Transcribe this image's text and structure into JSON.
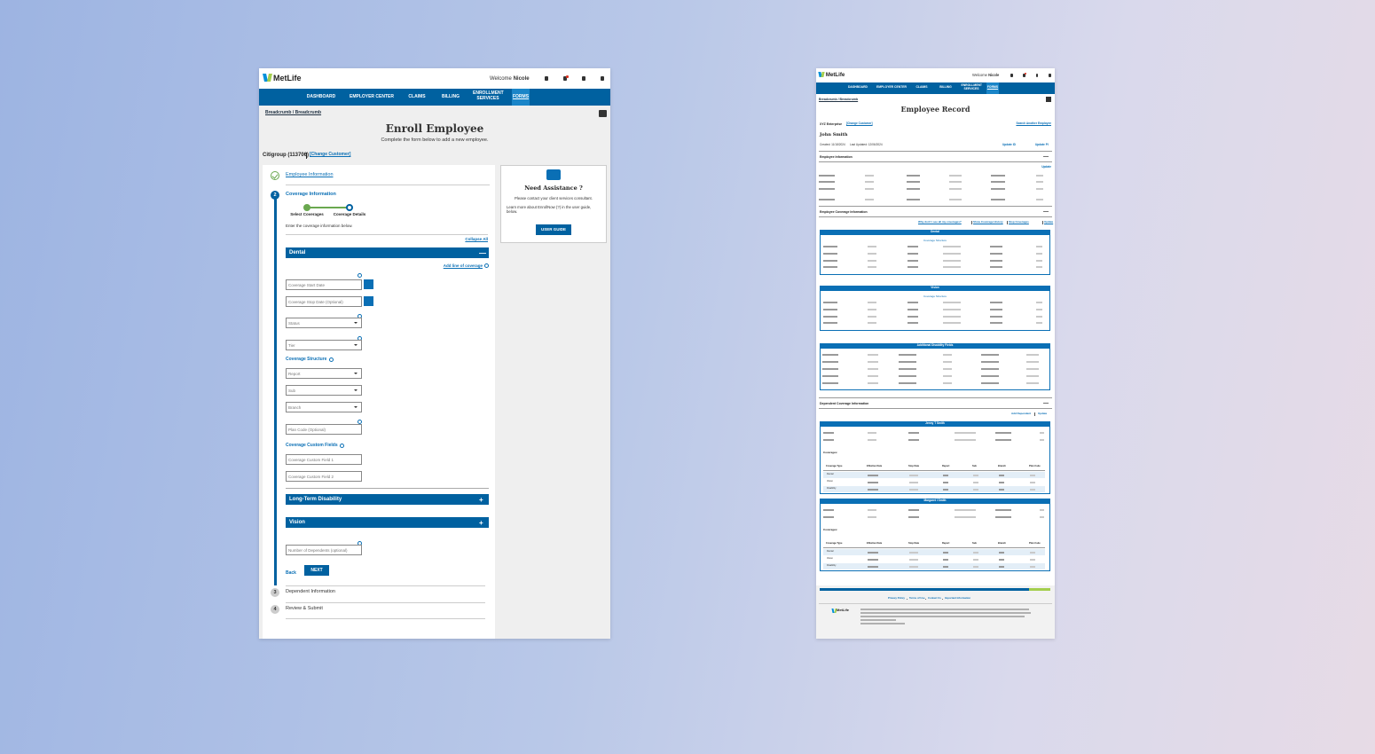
{
  "header": {
    "logo": "MetLife",
    "welcome": "Welcome",
    "user": "Nicole"
  },
  "nav": [
    "DASHBOARD",
    "EMPLOYER CENTER",
    "CLAIMS",
    "BILLING",
    "ENROLLMENT SERVICES",
    "FORMS"
  ],
  "breadcrumb": "Breadcrumb / Breadcrumb",
  "enroll": {
    "title": "Enroll Employee",
    "subtitle": "Complete the form below to add a new employee.",
    "customer": "Citigroup (113706)",
    "change_customer": "[Change Customer]",
    "steps": [
      {
        "label": "Employee Information"
      },
      {
        "number": "2",
        "label": "Coverage Information"
      },
      {
        "number": "3",
        "label": "Dependent Information"
      },
      {
        "number": "4",
        "label": "Review & Submit"
      }
    ],
    "substeps": [
      "Select Coverages",
      "Coverage Details"
    ],
    "instructions": "Enter the coverage information below.",
    "collapse_all": "Collapse All",
    "dental": {
      "title": "Dental",
      "add_line": "Add line of coverage",
      "start_date": "Coverage Start Date",
      "stop_date": "Coverage Stop Date (Optional)",
      "status": "Status",
      "tier": "Tier",
      "structure_label": "Coverage Structure",
      "structure": [
        "Report",
        "Sub",
        "Branch"
      ],
      "plan_code": "Plan Code (Optional)",
      "custom_label": "Coverage Custom Fields",
      "custom": [
        "Coverage Custom Field 1",
        "Coverage Custom Field 2"
      ]
    },
    "collapsed_sections": [
      "Long-Term Disability",
      "Vision"
    ],
    "dependents_field": "Number of Dependents (optional)",
    "back": "Back",
    "next": "NEXT",
    "expand": "+",
    "collapse": "—"
  },
  "assistance": {
    "title": "Need Assistance ?",
    "text": "Please contact your client services consultant.",
    "more": "Learn more about EnrollNow (?) in the user guide, below.",
    "button": "USER GUIDE"
  },
  "record": {
    "title": "Employee Record",
    "customer": "XYZ Enterprise",
    "change_customer": "[Change Customer]",
    "search": "Search Another Employee",
    "name": "John Smith",
    "created": "Created: 11/18/2024",
    "updated": "Last Updated: 12/06/2024",
    "actions": [
      "Update ID",
      "Update PI"
    ],
    "employee_section": "Employee Information",
    "update": "Update",
    "coverage_section": "Employee Coverage Information",
    "coverage_links": [
      "Why don't I see all my coverages?",
      "Show Coverage History",
      "Stop Coverages",
      "Update"
    ],
    "coverages": [
      "Dental",
      "Vision"
    ],
    "structure": "Coverage Structure",
    "disability": "Additional Disability Fields",
    "dependent_section": "Dependent Coverage Information",
    "dependent_links": [
      "Add Dependent",
      "Update"
    ],
    "dependents": [
      "Jenny T Smith",
      "Margaret I Smith"
    ],
    "coverages_label": "Coverages:",
    "table_header": [
      "Coverage Type",
      "Effective Date",
      "Stop Date",
      "Report",
      "Sub",
      "Branch",
      "Plan Code"
    ],
    "table_types": [
      "Dental",
      "Vision",
      "Disability"
    ],
    "footer_links": [
      "Privacy Policy",
      "Terms of Use",
      "Contact Us",
      "Important Information"
    ]
  }
}
